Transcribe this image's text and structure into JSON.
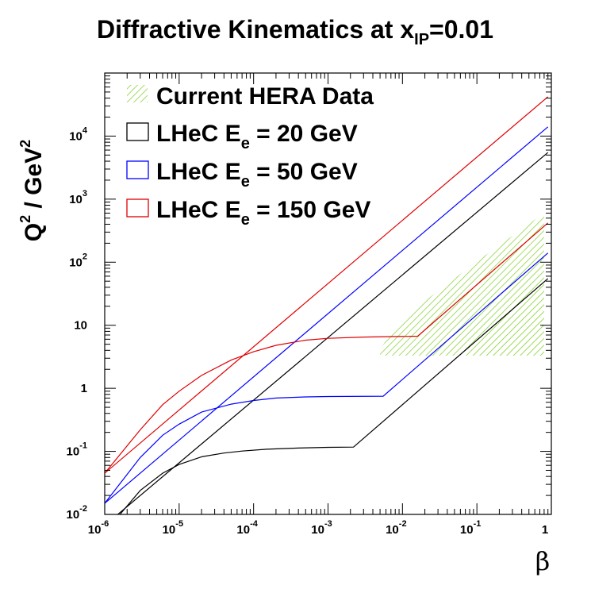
{
  "chart_data": {
    "type": "line",
    "title_main": "Diffractive Kinematics at x",
    "title_sub": "IP",
    "title_tail": "=0.01",
    "xlabel": "β",
    "ylabel_q": "Q",
    "ylabel_q_exp": "2",
    "ylabel_sep": " / GeV",
    "ylabel_gev_exp": "2",
    "xscale": "log",
    "yscale": "log",
    "xlim": [
      1e-06,
      1
    ],
    "ylim": [
      0.01,
      100000
    ],
    "x_ticks": [
      {
        "value": 1e-06,
        "base": "10",
        "exp": "-6"
      },
      {
        "value": 1e-05,
        "base": "10",
        "exp": "-5"
      },
      {
        "value": 0.0001,
        "base": "10",
        "exp": "-4"
      },
      {
        "value": 0.001,
        "base": "10",
        "exp": "-3"
      },
      {
        "value": 0.01,
        "base": "10",
        "exp": "-2"
      },
      {
        "value": 0.1,
        "base": "10",
        "exp": "-1"
      },
      {
        "value": 1,
        "base": "1",
        "exp": ""
      }
    ],
    "y_ticks": [
      {
        "value": 0.01,
        "base": "10",
        "exp": "-2"
      },
      {
        "value": 0.1,
        "base": "10",
        "exp": "-1"
      },
      {
        "value": 1,
        "base": "1",
        "exp": ""
      },
      {
        "value": 10,
        "base": "10",
        "exp": ""
      },
      {
        "value": 100,
        "base": "10",
        "exp": "2"
      },
      {
        "value": 1000,
        "base": "10",
        "exp": "3"
      },
      {
        "value": 10000,
        "base": "10",
        "exp": "4"
      }
    ],
    "legend_position": "top-left",
    "legend": [
      {
        "label": "Current HERA Data",
        "kind": "hatch",
        "color": "#7acc1e"
      },
      {
        "label": "LHeC E",
        "sub": "e",
        "tail": " = 20 GeV",
        "kind": "line",
        "color": "#000000"
      },
      {
        "label": "LHeC E",
        "sub": "e",
        "tail": " = 50 GeV",
        "kind": "line",
        "color": "#0000ff"
      },
      {
        "label": "LHeC E",
        "sub": "e",
        "tail": " = 150 GeV",
        "kind": "line",
        "color": "#e00000"
      }
    ],
    "series": [
      {
        "name": "LHeC Ee = 20 GeV upper",
        "color": "#000000",
        "points": [
          [
            1.5e-06,
            0.01
          ],
          [
            0.9,
            5500
          ]
        ]
      },
      {
        "name": "LHeC Ee = 20 GeV lower",
        "color": "#000000",
        "points": [
          [
            1.6e-06,
            0.01
          ],
          [
            3e-06,
            0.024
          ],
          [
            6e-06,
            0.045
          ],
          [
            1e-05,
            0.062
          ],
          [
            2e-05,
            0.082
          ],
          [
            4e-05,
            0.094
          ],
          [
            7e-05,
            0.101
          ],
          [
            0.00015,
            0.108
          ],
          [
            0.0004,
            0.113
          ],
          [
            0.001,
            0.116
          ],
          [
            0.0022,
            0.117
          ],
          [
            0.9,
            55
          ]
        ]
      },
      {
        "name": "LHeC Ee = 50 GeV upper",
        "color": "#0000ff",
        "points": [
          [
            1e-06,
            0.015
          ],
          [
            0.9,
            14000
          ]
        ]
      },
      {
        "name": "LHeC Ee = 50 GeV lower",
        "color": "#0000ff",
        "points": [
          [
            1e-06,
            0.015
          ],
          [
            3e-06,
            0.08
          ],
          [
            6e-06,
            0.18
          ],
          [
            1e-05,
            0.27
          ],
          [
            2e-05,
            0.42
          ],
          [
            5e-05,
            0.56
          ],
          [
            0.0001,
            0.64
          ],
          [
            0.0002,
            0.7
          ],
          [
            0.0005,
            0.73
          ],
          [
            0.001,
            0.74
          ],
          [
            0.0055,
            0.75
          ],
          [
            0.9,
            140
          ]
        ]
      },
      {
        "name": "LHeC Ee = 150 GeV upper",
        "color": "#e00000",
        "points": [
          [
            1e-06,
            0.045
          ],
          [
            0.9,
            42000
          ]
        ]
      },
      {
        "name": "LHeC Ee = 150 GeV lower",
        "color": "#e00000",
        "points": [
          [
            1e-06,
            0.045
          ],
          [
            3e-06,
            0.22
          ],
          [
            6e-06,
            0.55
          ],
          [
            1e-05,
            0.9
          ],
          [
            2e-05,
            1.6
          ],
          [
            5e-05,
            2.8
          ],
          [
            0.0001,
            3.8
          ],
          [
            0.0002,
            4.8
          ],
          [
            0.0005,
            5.8
          ],
          [
            0.001,
            6.2
          ],
          [
            0.003,
            6.5
          ],
          [
            0.016,
            6.7
          ],
          [
            0.9,
            420
          ]
        ]
      }
    ],
    "hera_region": {
      "color": "#7acc1e",
      "points": [
        [
          0.005,
          3.3
        ],
        [
          0.8,
          3.3
        ],
        [
          0.8,
          600
        ],
        [
          0.12,
          120
        ],
        [
          0.03,
          35
        ],
        [
          0.012,
          15
        ],
        [
          0.008,
          9
        ],
        [
          0.005,
          4.2
        ]
      ]
    }
  }
}
